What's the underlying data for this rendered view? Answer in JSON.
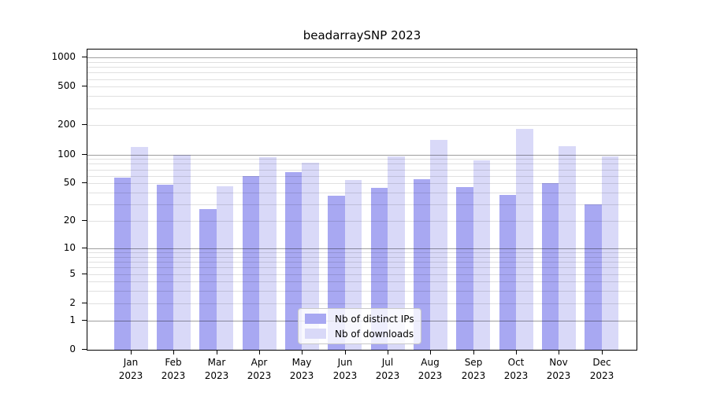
{
  "chart_data": {
    "type": "bar",
    "title": "beadarraySNP 2023",
    "categories": [
      "Jan",
      "Feb",
      "Mar",
      "Apr",
      "May",
      "Jun",
      "Jul",
      "Aug",
      "Sep",
      "Oct",
      "Nov",
      "Dec"
    ],
    "year": "2023",
    "series": [
      {
        "name": "Nb of distinct IPs",
        "color": "#a8a8f2",
        "values": [
          57,
          48,
          27,
          60,
          65,
          37,
          45,
          55,
          46,
          38,
          50,
          30
        ]
      },
      {
        "name": "Nb of downloads",
        "color": "#d9d9f8",
        "values": [
          119,
          100,
          47,
          94,
          82,
          54,
          95,
          141,
          87,
          184,
          122,
          96
        ]
      }
    ],
    "yscale": "log10(value+1)",
    "ylim": [
      0,
      1000
    ],
    "yticks": [
      1000,
      500,
      200,
      100,
      50,
      20,
      10,
      5,
      2,
      1,
      0
    ],
    "major_gridline_values": [
      1000,
      100,
      10,
      1
    ],
    "minor_gridlines": [
      900,
      800,
      700,
      600,
      400,
      300,
      90,
      80,
      70,
      60,
      40,
      30,
      9,
      8,
      7,
      6,
      4,
      3
    ],
    "grid": true,
    "legend_position": "bottom-center"
  },
  "colors": {
    "background": "#ffffff",
    "spine": "#000000",
    "grid_major": "rgba(0,0,0,0.38)",
    "grid_minor": "rgba(0,0,0,0.12)",
    "text": "#000000",
    "legend_background": "rgba(255,255,255,0.8)",
    "legend_border": "#c9c9c9"
  }
}
